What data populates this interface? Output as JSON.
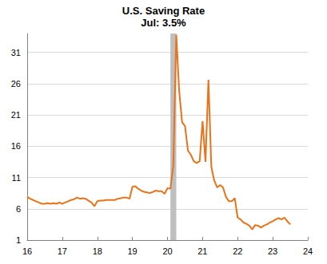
{
  "chart_data": {
    "type": "line",
    "title": "U.S. Saving Rate",
    "subtitle": "Jul: 3.5%",
    "color": "#e8731a",
    "grid": true,
    "recession": [
      2020.083,
      2020.25
    ],
    "xlim": [
      2016,
      2024
    ],
    "xticks": [
      {
        "value": 2016,
        "label": "16"
      },
      {
        "value": 2017,
        "label": "17"
      },
      {
        "value": 2018,
        "label": "18"
      },
      {
        "value": 2019,
        "label": "19"
      },
      {
        "value": 2020,
        "label": "20"
      },
      {
        "value": 2021,
        "label": "21"
      },
      {
        "value": 2022,
        "label": "22"
      },
      {
        "value": 2023,
        "label": "23"
      },
      {
        "value": 2024,
        "label": "24"
      }
    ],
    "ylim": [
      1,
      34
    ],
    "yticks": [
      1,
      6,
      11,
      16,
      21,
      26,
      31
    ],
    "x": [
      2016,
      2016.083,
      2016.167,
      2016.25,
      2016.333,
      2016.417,
      2016.5,
      2016.583,
      2016.667,
      2016.75,
      2016.833,
      2016.917,
      2017,
      2017.083,
      2017.167,
      2017.25,
      2017.333,
      2017.417,
      2017.5,
      2017.583,
      2017.667,
      2017.75,
      2017.833,
      2017.917,
      2018,
      2018.083,
      2018.167,
      2018.25,
      2018.333,
      2018.417,
      2018.5,
      2018.583,
      2018.667,
      2018.75,
      2018.833,
      2018.917,
      2019,
      2019.083,
      2019.167,
      2019.25,
      2019.333,
      2019.417,
      2019.5,
      2019.583,
      2019.667,
      2019.75,
      2019.833,
      2019.917,
      2020,
      2020.083,
      2020.167,
      2020.25,
      2020.333,
      2020.417,
      2020.5,
      2020.583,
      2020.667,
      2020.75,
      2020.833,
      2020.917,
      2021,
      2021.083,
      2021.167,
      2021.25,
      2021.333,
      2021.417,
      2021.5,
      2021.583,
      2021.667,
      2021.75,
      2021.833,
      2021.917,
      2022,
      2022.083,
      2022.167,
      2022.25,
      2022.333,
      2022.417,
      2022.5,
      2022.583,
      2022.667,
      2022.75,
      2022.833,
      2022.917,
      2023,
      2023.083,
      2023.167,
      2023.25,
      2023.333,
      2023.417,
      2023.5
    ],
    "values": [
      7.9,
      7.6,
      7.4,
      7.2,
      7.0,
      6.8,
      6.8,
      6.9,
      6.8,
      6.9,
      6.8,
      7.0,
      6.8,
      7.0,
      7.2,
      7.4,
      7.5,
      7.8,
      7.6,
      7.7,
      7.6,
      7.3,
      7.0,
      6.4,
      7.2,
      7.3,
      7.3,
      7.4,
      7.4,
      7.4,
      7.4,
      7.6,
      7.7,
      7.8,
      7.8,
      7.6,
      9.5,
      9.6,
      9.2,
      8.9,
      8.7,
      8.6,
      8.5,
      8.7,
      8.9,
      8.8,
      8.8,
      8.4,
      9.3,
      9.2,
      13.0,
      33.8,
      24.8,
      19.8,
      19.2,
      15.3,
      14.6,
      13.6,
      13.3,
      13.6,
      20.0,
      13.5,
      26.6,
      12.7,
      10.5,
      9.4,
      9.8,
      9.4,
      7.9,
      7.2,
      7.2,
      7.7,
      4.6,
      4.3,
      3.8,
      3.6,
      3.3,
      2.7,
      3.4,
      3.3,
      3.0,
      3.3,
      3.5,
      3.8,
      4.0,
      4.3,
      4.5,
      4.3,
      4.6,
      4.0,
      3.5
    ]
  }
}
